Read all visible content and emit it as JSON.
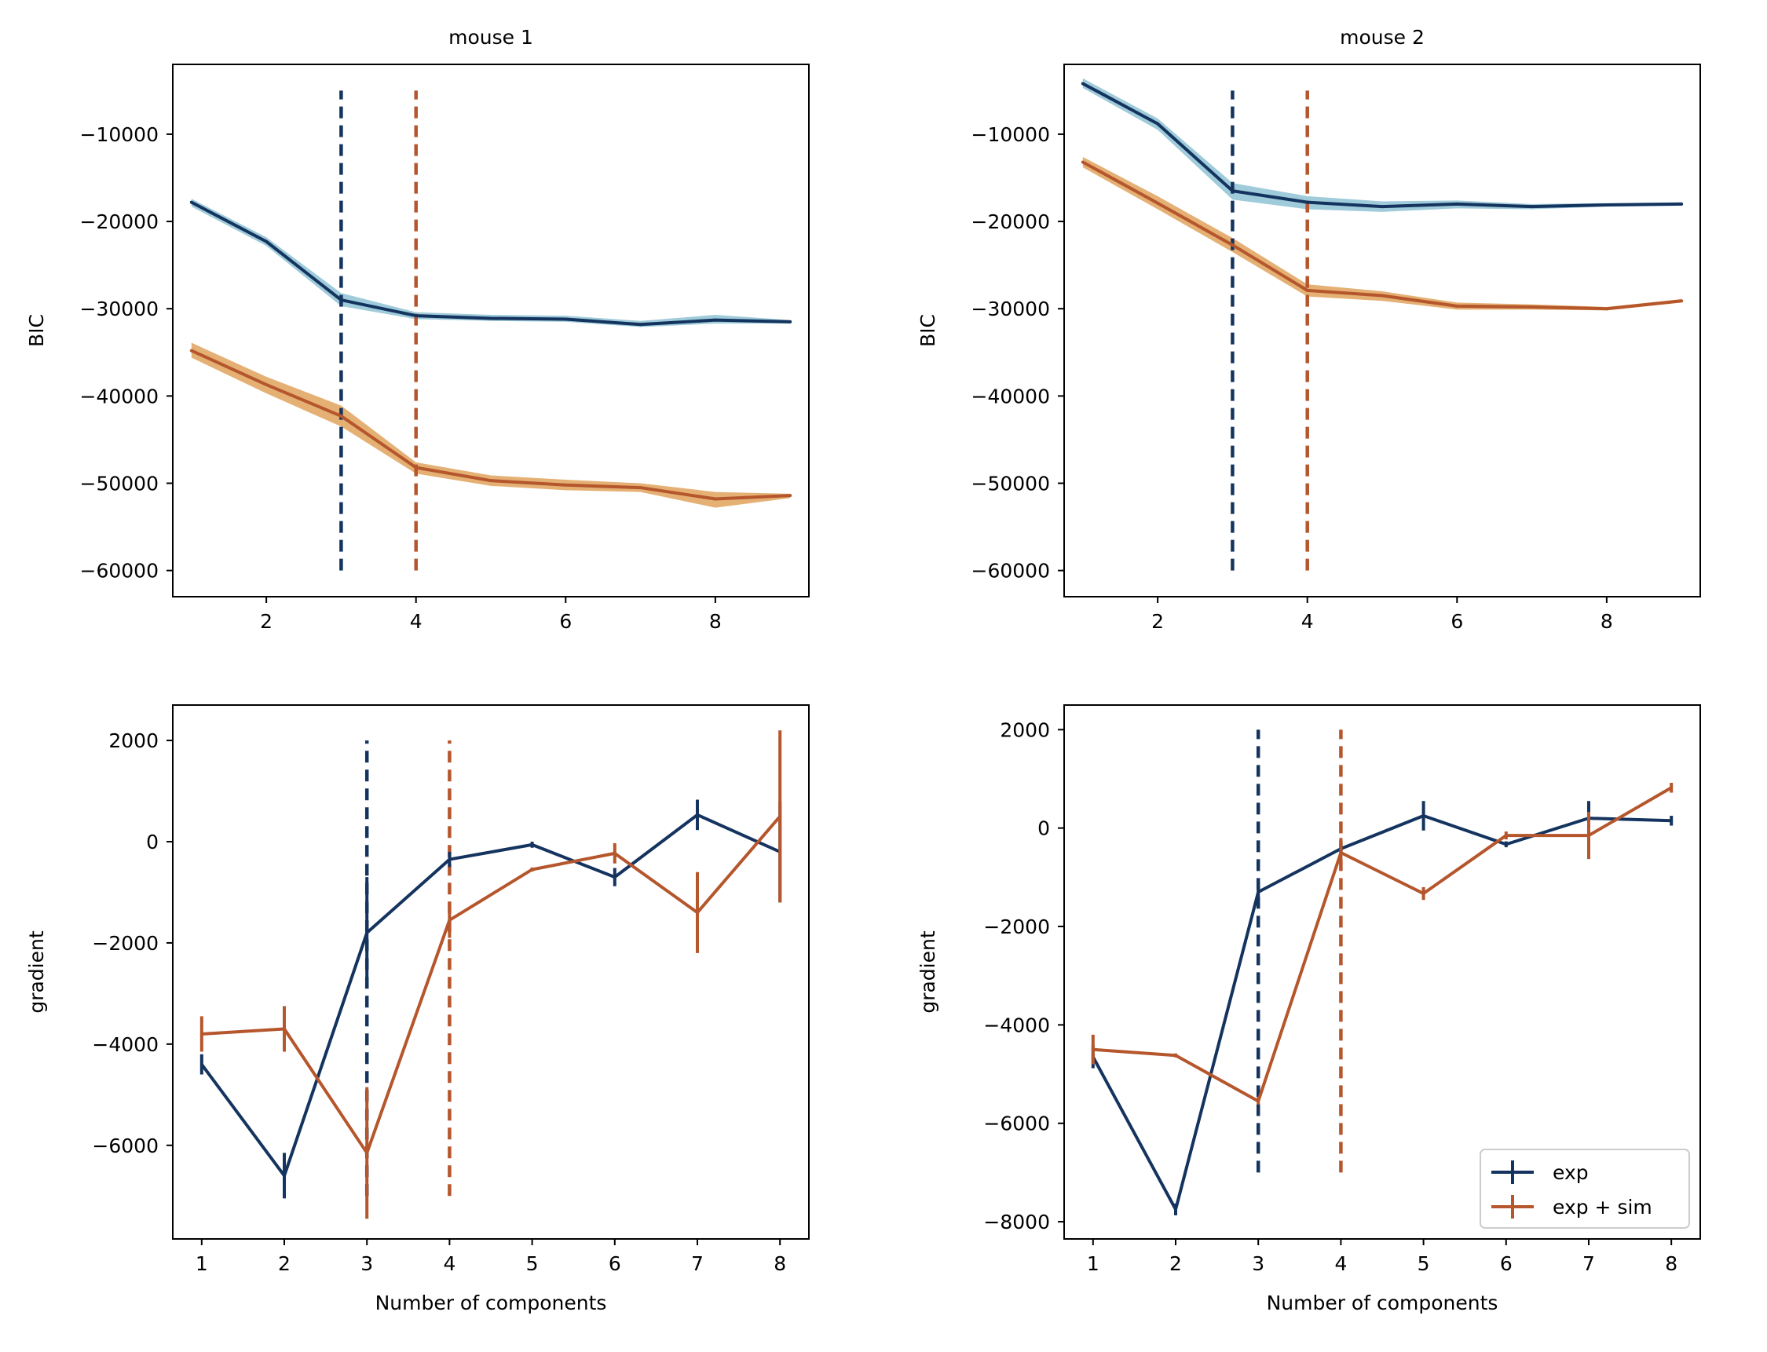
{
  "colors": {
    "exp_line": "#14345f",
    "exp_band": "#8ec2d4",
    "sim_line": "#b5562c",
    "sim_band": "#e0a25c"
  },
  "legend": {
    "exp": "exp",
    "exp_sim": "exp + sim"
  },
  "chart_data": [
    {
      "type": "line",
      "title": "mouse 1",
      "xlabel": "",
      "ylabel": "BIC",
      "xlim": [
        0.75,
        9.25
      ],
      "ylim": [
        -63000,
        -2000
      ],
      "xticks": [
        2,
        4,
        6,
        8
      ],
      "yticks": [
        -60000,
        -50000,
        -40000,
        -30000,
        -20000,
        -10000
      ],
      "ytick_labels": [
        "−60000",
        "−50000",
        "−40000",
        "−30000",
        "−20000",
        "−10000"
      ],
      "series": [
        {
          "name": "exp",
          "x": [
            1,
            2,
            3,
            4,
            5,
            6,
            7,
            8,
            9
          ],
          "values": [
            -17800,
            -22300,
            -29000,
            -30800,
            -31100,
            -31200,
            -31800,
            -31300,
            -31500
          ],
          "band_low": [
            -18300,
            -22800,
            -29700,
            -31200,
            -31400,
            -31500,
            -32100,
            -31700,
            -31700
          ],
          "band_high": [
            -17400,
            -21800,
            -28200,
            -30400,
            -30700,
            -30800,
            -31400,
            -30700,
            -31300
          ]
        },
        {
          "name": "exp + sim",
          "x": [
            1,
            2,
            3,
            4,
            5,
            6,
            7,
            8,
            9
          ],
          "values": [
            -34800,
            -38700,
            -42300,
            -48200,
            -49700,
            -50200,
            -50500,
            -51800,
            -51400
          ],
          "band_low": [
            -35600,
            -39700,
            -43500,
            -48900,
            -50300,
            -50800,
            -51000,
            -52800,
            -51700
          ],
          "band_high": [
            -33900,
            -37800,
            -41100,
            -47600,
            -49100,
            -49600,
            -50000,
            -51000,
            -51200
          ]
        }
      ],
      "vlines": [
        {
          "series": "exp",
          "x": 3,
          "ymin": -60000,
          "ymax": -5000
        },
        {
          "series": "exp + sim",
          "x": 4,
          "ymin": -60000,
          "ymax": -5000
        }
      ]
    },
    {
      "type": "line",
      "title": "mouse 2",
      "xlabel": "",
      "ylabel": "BIC",
      "xlim": [
        0.75,
        9.25
      ],
      "ylim": [
        -63000,
        -2000
      ],
      "xticks": [
        2,
        4,
        6,
        8
      ],
      "yticks": [
        -60000,
        -50000,
        -40000,
        -30000,
        -20000,
        -10000
      ],
      "ytick_labels": [
        "−60000",
        "−50000",
        "−40000",
        "−30000",
        "−20000",
        "−10000"
      ],
      "series": [
        {
          "name": "exp",
          "x": [
            1,
            2,
            3,
            4,
            5,
            6,
            7,
            8,
            9
          ],
          "values": [
            -4200,
            -8800,
            -16500,
            -17800,
            -18300,
            -18000,
            -18300,
            -18100,
            -18000
          ],
          "band_low": [
            -4700,
            -9500,
            -17500,
            -18600,
            -18900,
            -18500,
            -18600,
            -18300,
            -18200
          ],
          "band_high": [
            -3600,
            -8200,
            -15600,
            -17100,
            -17700,
            -17600,
            -18000,
            -17900,
            -17800
          ]
        },
        {
          "name": "exp + sim",
          "x": [
            1,
            2,
            3,
            4,
            5,
            6,
            7,
            8,
            9
          ],
          "values": [
            -13200,
            -17900,
            -22700,
            -27900,
            -28500,
            -29700,
            -29800,
            -30000,
            -29100
          ],
          "band_low": [
            -13800,
            -18600,
            -23500,
            -28600,
            -29100,
            -30100,
            -30100,
            -30200,
            -29300
          ],
          "band_high": [
            -12600,
            -17100,
            -21900,
            -27200,
            -28000,
            -29300,
            -29500,
            -29800,
            -28900
          ]
        }
      ],
      "vlines": [
        {
          "series": "exp",
          "x": 3,
          "ymin": -60000,
          "ymax": -5000
        },
        {
          "series": "exp + sim",
          "x": 4,
          "ymin": -60000,
          "ymax": -5000
        }
      ]
    },
    {
      "type": "line",
      "title": "",
      "xlabel": "Number of components",
      "ylabel": "gradient",
      "xlim": [
        0.65,
        8.35
      ],
      "ylim": [
        -7850,
        2700
      ],
      "xticks": [
        1,
        2,
        3,
        4,
        5,
        6,
        7,
        8
      ],
      "yticks": [
        -6000,
        -4000,
        -2000,
        0,
        2000
      ],
      "ytick_labels": [
        "−6000",
        "−4000",
        "−2000",
        "0",
        "2000"
      ],
      "series": [
        {
          "name": "exp",
          "x": [
            1,
            2,
            3,
            4,
            5,
            6,
            7,
            8
          ],
          "values": [
            -4400,
            -6600,
            -1800,
            -350,
            -60,
            -700,
            530,
            -200
          ],
          "errors": [
            200,
            450,
            1100,
            150,
            60,
            180,
            300,
            1000
          ]
        },
        {
          "name": "exp + sim",
          "x": [
            1,
            2,
            3,
            4,
            5,
            6,
            7,
            8
          ],
          "values": [
            -3800,
            -3700,
            -6150,
            -1550,
            -550,
            -230,
            -1400,
            500
          ],
          "errors": [
            350,
            450,
            1300,
            350,
            40,
            200,
            800,
            1700
          ]
        }
      ],
      "vlines": [
        {
          "series": "exp",
          "x": 3,
          "ymin": -7000,
          "ymax": 2000
        },
        {
          "series": "exp + sim",
          "x": 4,
          "ymin": -7000,
          "ymax": 2000
        }
      ]
    },
    {
      "type": "line",
      "title": "",
      "xlabel": "Number of components",
      "ylabel": "gradient",
      "xlim": [
        0.65,
        8.35
      ],
      "ylim": [
        -8350,
        2500
      ],
      "xticks": [
        1,
        2,
        3,
        4,
        5,
        6,
        7,
        8
      ],
      "yticks": [
        -8000,
        -6000,
        -4000,
        -2000,
        0,
        2000
      ],
      "ytick_labels": [
        "−8000",
        "−6000",
        "−4000",
        "−2000",
        "0",
        "2000"
      ],
      "series": [
        {
          "name": "exp",
          "x": [
            1,
            2,
            3,
            4,
            5,
            6,
            7,
            8
          ],
          "values": [
            -4650,
            -7750,
            -1300,
            -420,
            250,
            -330,
            200,
            150
          ],
          "errors": [
            230,
            120,
            200,
            100,
            300,
            60,
            350,
            100
          ]
        },
        {
          "name": "exp + sim",
          "x": [
            1,
            2,
            3,
            4,
            5,
            6,
            7,
            8
          ],
          "values": [
            -4500,
            -4620,
            -5550,
            -500,
            -1330,
            -150,
            -150,
            820
          ],
          "errors": [
            300,
            40,
            70,
            300,
            130,
            80,
            480,
            100
          ]
        }
      ],
      "vlines": [
        {
          "series": "exp",
          "x": 3,
          "ymin": -7000,
          "ymax": 2000
        },
        {
          "series": "exp + sim",
          "x": 4,
          "ymin": -7000,
          "ymax": 2000
        }
      ],
      "legend_position": "lower-right"
    }
  ]
}
